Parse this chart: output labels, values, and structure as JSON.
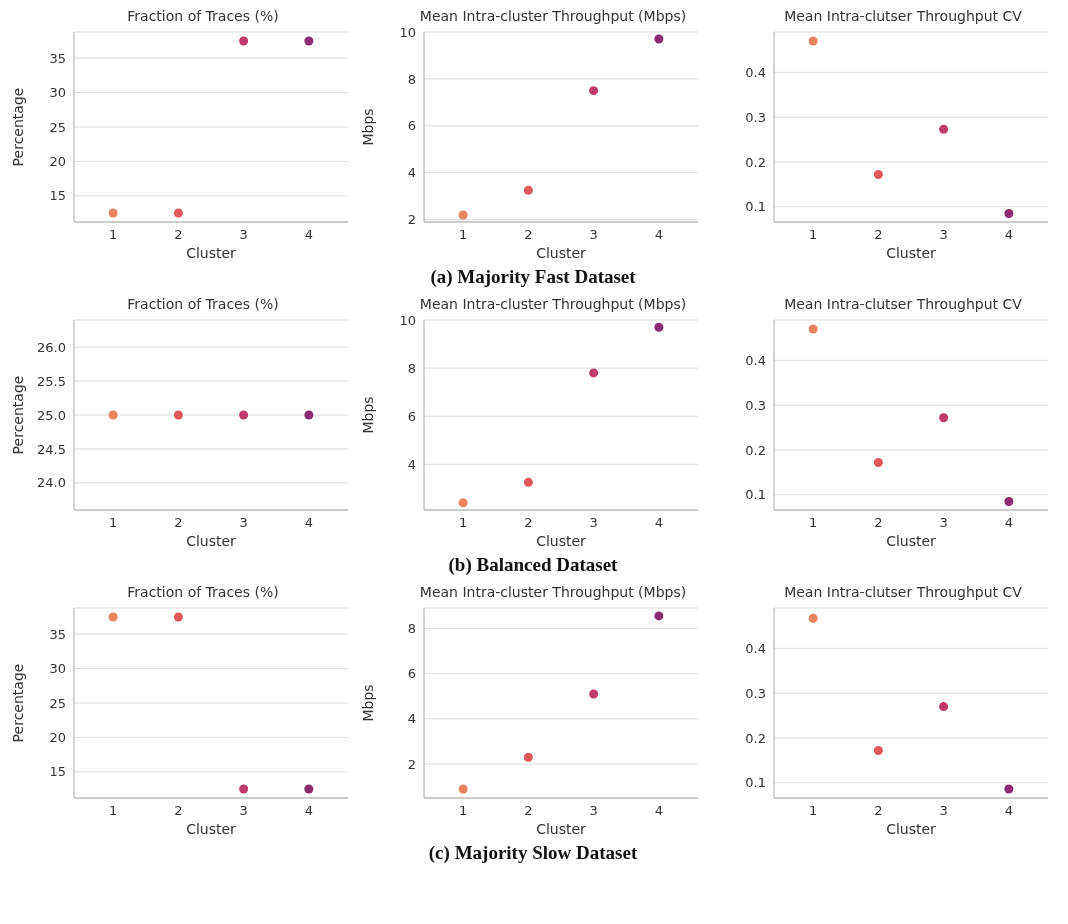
{
  "chart_data": [
    {
      "type": "scatter",
      "title": "Fraction of Traces (%)",
      "xlabel": "Cluster",
      "ylabel": "Percentage",
      "categories": [
        "1",
        "2",
        "3",
        "4"
      ],
      "values": [
        12.5,
        12.5,
        37.5,
        37.5
      ],
      "colors": [
        "#e8825f",
        "#e0585b",
        "#c03a6c",
        "#8f2c6e"
      ],
      "ylim": [
        11.2,
        38.8
      ],
      "yticks": [
        15,
        20,
        25,
        30,
        35
      ],
      "grid": "y",
      "marker": "circle"
    },
    {
      "type": "scatter",
      "title": "Mean Intra-cluster Throughput (Mbps)",
      "xlabel": "Cluster",
      "ylabel": "Mbps",
      "categories": [
        "1",
        "2",
        "3",
        "4"
      ],
      "values": [
        2.2,
        3.25,
        7.5,
        9.7
      ],
      "colors": [
        "#e8825f",
        "#e0585b",
        "#c03a6c",
        "#8f2c6e"
      ],
      "ylim": [
        1.9,
        10
      ],
      "yticks": [
        2,
        4,
        6,
        8,
        10
      ],
      "grid": "y",
      "marker": "circle"
    },
    {
      "type": "scatter",
      "title": "Mean Intra-clutser Throughput CV",
      "xlabel": "Cluster",
      "categories": [
        "1",
        "2",
        "3",
        "4"
      ],
      "values": [
        0.47,
        0.172,
        0.273,
        0.085
      ],
      "colors": [
        "#e8825f",
        "#e0585b",
        "#c03a6c",
        "#8f2c6e"
      ],
      "ylim": [
        0.066,
        0.49
      ],
      "yticks": [
        0.1,
        0.2,
        0.3,
        0.4
      ],
      "grid": "y",
      "marker": "circle",
      "annotations": [
        "(a) Majority Fast Dataset"
      ]
    },
    {
      "type": "scatter",
      "title": "Fraction of Traces (%)",
      "xlabel": "Cluster",
      "ylabel": "Percentage",
      "categories": [
        "1",
        "2",
        "3",
        "4"
      ],
      "values": [
        25,
        25,
        25,
        25
      ],
      "colors": [
        "#e8825f",
        "#e0585b",
        "#c03a6c",
        "#8f2c6e"
      ],
      "ylim": [
        23.6,
        26.4
      ],
      "yticks": [
        {
          "value": 24,
          "label": "24.0"
        },
        {
          "value": 24.5,
          "label": "24.5"
        },
        {
          "value": 25,
          "label": "25.0"
        },
        {
          "value": 25.5,
          "label": "25.5"
        },
        {
          "value": 26,
          "label": "26.0"
        }
      ],
      "grid": "y",
      "marker": "circle"
    },
    {
      "type": "scatter",
      "title": "Mean Intra-cluster Throughput (Mbps)",
      "xlabel": "Cluster",
      "ylabel": "Mbps",
      "categories": [
        "1",
        "2",
        "3",
        "4"
      ],
      "values": [
        2.4,
        3.25,
        7.8,
        9.7
      ],
      "colors": [
        "#e8825f",
        "#e0585b",
        "#c03a6c",
        "#8f2c6e"
      ],
      "ylim": [
        2.1,
        10
      ],
      "yticks": [
        4,
        6,
        8,
        10
      ],
      "grid": "y",
      "marker": "circle"
    },
    {
      "type": "scatter",
      "title": "Mean Intra-clutser Throughput CV",
      "xlabel": "Cluster",
      "categories": [
        "1",
        "2",
        "3",
        "4"
      ],
      "values": [
        0.47,
        0.172,
        0.272,
        0.085
      ],
      "colors": [
        "#e8825f",
        "#e0585b",
        "#c03a6c",
        "#8f2c6e"
      ],
      "ylim": [
        0.066,
        0.49
      ],
      "yticks": [
        0.1,
        0.2,
        0.3,
        0.4
      ],
      "grid": "y",
      "marker": "circle",
      "annotations": [
        "(b) Balanced Dataset"
      ]
    },
    {
      "type": "scatter",
      "title": "Fraction of Traces (%)",
      "xlabel": "Cluster",
      "ylabel": "Percentage",
      "categories": [
        "1",
        "2",
        "3",
        "4"
      ],
      "values": [
        37.5,
        37.5,
        12.5,
        12.5
      ],
      "colors": [
        "#e8825f",
        "#e0585b",
        "#c03a6c",
        "#8f2c6e"
      ],
      "ylim": [
        11.2,
        38.8
      ],
      "yticks": [
        15,
        20,
        25,
        30,
        35
      ],
      "grid": "y",
      "marker": "circle"
    },
    {
      "type": "scatter",
      "title": "Mean Intra-cluster Throughput (Mbps)",
      "xlabel": "Cluster",
      "ylabel": "Mbps",
      "categories": [
        "1",
        "2",
        "3",
        "4"
      ],
      "values": [
        0.9,
        2.3,
        5.1,
        8.55
      ],
      "colors": [
        "#e8825f",
        "#e0585b",
        "#c03a6c",
        "#8f2c6e"
      ],
      "ylim": [
        0.5,
        8.9
      ],
      "yticks": [
        2,
        4,
        6,
        8
      ],
      "grid": "y",
      "marker": "circle"
    },
    {
      "type": "scatter",
      "title": "Mean Intra-clutser Throughput CV",
      "xlabel": "Cluster",
      "categories": [
        "1",
        "2",
        "3",
        "4"
      ],
      "values": [
        0.467,
        0.172,
        0.27,
        0.086
      ],
      "colors": [
        "#e8825f",
        "#e0585b",
        "#c03a6c",
        "#8f2c6e"
      ],
      "ylim": [
        0.066,
        0.49
      ],
      "yticks": [
        0.1,
        0.2,
        0.3,
        0.4
      ],
      "grid": "y",
      "marker": "circle",
      "annotations": [
        "(c) Majority Slow Dataset"
      ]
    }
  ]
}
